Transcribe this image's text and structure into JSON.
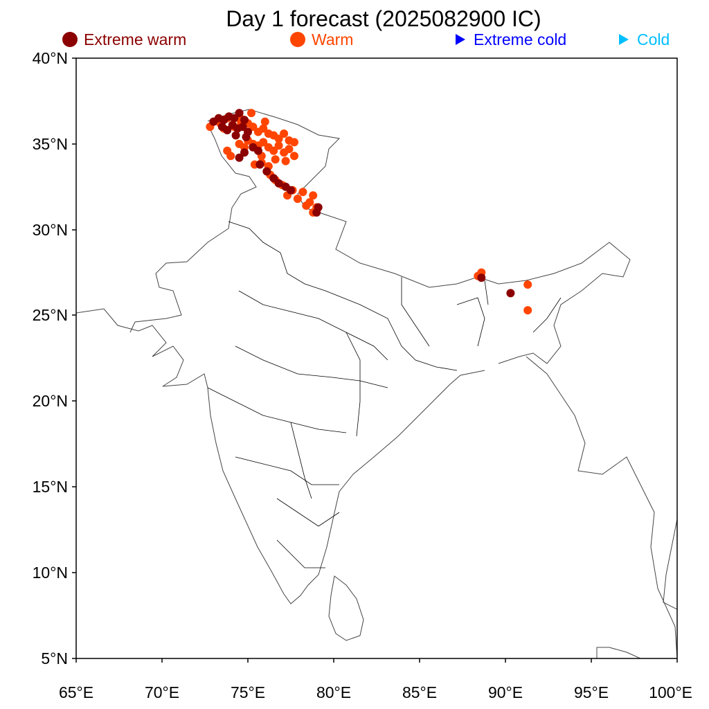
{
  "title": "Day 1 forecast (2025082900 IC)",
  "legend": [
    {
      "label": "Extreme warm",
      "marker": "circle",
      "color": "#8b0000"
    },
    {
      "label": "Warm",
      "marker": "circle",
      "color": "#ff4500"
    },
    {
      "label": "Extreme cold",
      "marker": "triangle",
      "color": "#0000ff"
    },
    {
      "label": "Cold",
      "marker": "triangle",
      "color": "#00bfff"
    }
  ],
  "axes": {
    "lon_range": [
      65,
      100
    ],
    "lat_range": [
      5,
      40
    ],
    "x_ticks": [
      "65°E",
      "70°E",
      "75°E",
      "80°E",
      "85°E",
      "90°E",
      "95°E",
      "100°E"
    ],
    "y_ticks": [
      "40°N",
      "35°N",
      "30°N",
      "25°N",
      "20°N",
      "15°N",
      "10°N",
      "5°N"
    ]
  },
  "markers": {
    "warm": [
      [
        73.0,
        36.3
      ],
      [
        73.4,
        36.2
      ],
      [
        73.8,
        36.5
      ],
      [
        74.2,
        36.0
      ],
      [
        74.6,
        36.3
      ],
      [
        75.0,
        36.2
      ],
      [
        75.3,
        36.0
      ],
      [
        75.6,
        35.7
      ],
      [
        75.9,
        35.9
      ],
      [
        76.2,
        35.6
      ],
      [
        76.5,
        35.5
      ],
      [
        76.8,
        35.3
      ],
      [
        77.1,
        35.6
      ],
      [
        77.4,
        35.2
      ],
      [
        77.7,
        35.1
      ],
      [
        75.0,
        35.2
      ],
      [
        75.3,
        35.0
      ],
      [
        75.6,
        34.9
      ],
      [
        75.9,
        35.1
      ],
      [
        76.2,
        34.8
      ],
      [
        76.5,
        34.6
      ],
      [
        76.8,
        34.9
      ],
      [
        77.1,
        34.5
      ],
      [
        77.4,
        34.7
      ],
      [
        77.7,
        34.3
      ],
      [
        74.5,
        35.0
      ],
      [
        74.8,
        34.8
      ],
      [
        73.8,
        34.6
      ],
      [
        74.0,
        34.3
      ],
      [
        75.4,
        33.8
      ],
      [
        75.8,
        33.9
      ],
      [
        76.2,
        33.7
      ],
      [
        76.6,
        34.1
      ],
      [
        77.2,
        34.0
      ],
      [
        75.2,
        36.8
      ],
      [
        76.0,
        36.3
      ],
      [
        74.5,
        36.6
      ],
      [
        73.6,
        35.9
      ],
      [
        72.8,
        36.0
      ],
      [
        75.8,
        34.3
      ],
      [
        76.3,
        33.2
      ],
      [
        76.6,
        32.9
      ],
      [
        77.0,
        32.6
      ],
      [
        77.3,
        32.0
      ],
      [
        77.6,
        32.3
      ],
      [
        77.9,
        31.8
      ],
      [
        78.2,
        32.2
      ],
      [
        78.6,
        31.6
      ],
      [
        78.8,
        32.0
      ],
      [
        78.4,
        31.4
      ],
      [
        78.8,
        31.0
      ],
      [
        79.0,
        31.3
      ],
      [
        88.4,
        27.3
      ],
      [
        88.6,
        27.5
      ],
      [
        91.3,
        26.8
      ],
      [
        91.3,
        25.3
      ]
    ],
    "extreme_warm": [
      [
        73.0,
        36.3
      ],
      [
        73.3,
        36.5
      ],
      [
        73.6,
        36.4
      ],
      [
        73.9,
        36.6
      ],
      [
        74.2,
        36.5
      ],
      [
        74.5,
        36.8
      ],
      [
        74.8,
        36.4
      ],
      [
        73.5,
        36.0
      ],
      [
        73.8,
        35.8
      ],
      [
        74.1,
        36.1
      ],
      [
        74.4,
        35.9
      ],
      [
        74.7,
        36.0
      ],
      [
        75.0,
        35.7
      ],
      [
        74.3,
        35.5
      ],
      [
        74.9,
        35.4
      ],
      [
        75.3,
        34.8
      ],
      [
        75.6,
        34.6
      ],
      [
        74.8,
        34.5
      ],
      [
        74.5,
        34.2
      ],
      [
        75.7,
        33.8
      ],
      [
        76.1,
        33.4
      ],
      [
        76.5,
        33.0
      ],
      [
        76.8,
        32.7
      ],
      [
        77.2,
        32.5
      ],
      [
        77.5,
        32.3
      ],
      [
        79.0,
        31.0
      ],
      [
        79.1,
        31.3
      ],
      [
        88.6,
        27.2
      ],
      [
        90.3,
        26.3
      ]
    ]
  }
}
